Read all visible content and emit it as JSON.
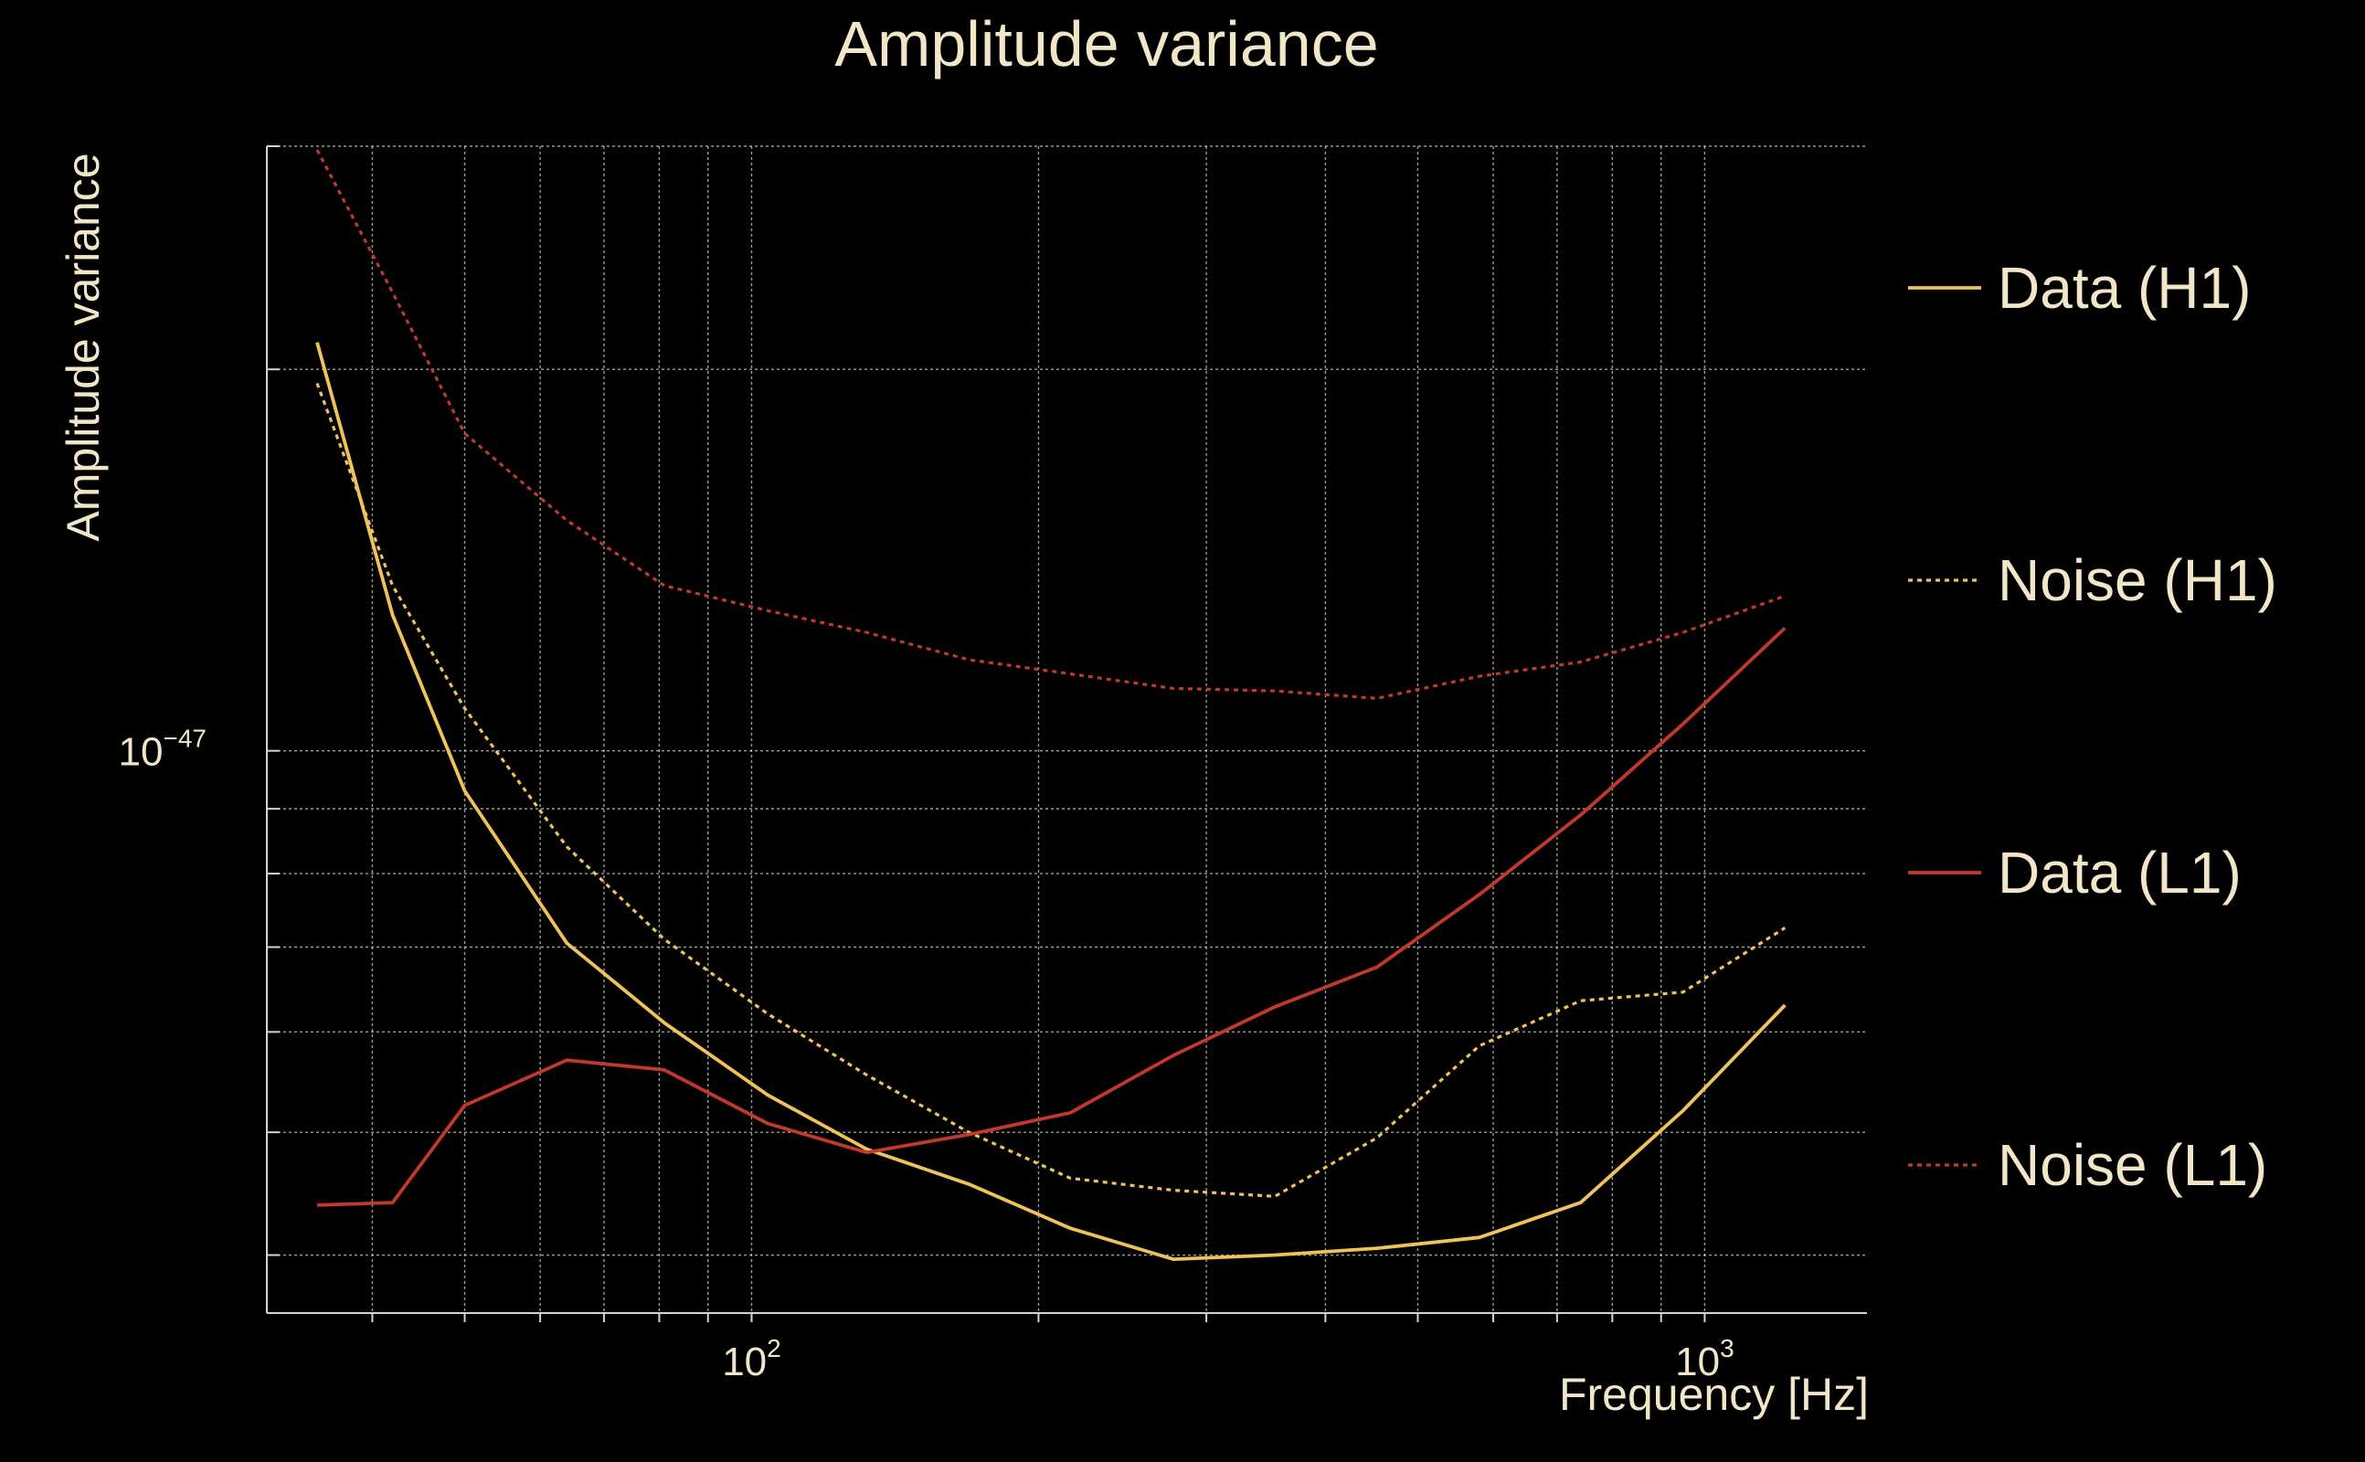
{
  "chart_data": {
    "type": "line",
    "title": "Amplitude variance",
    "xlabel": "Frequency [Hz]",
    "ylabel": "Amplitude variance",
    "xscale": "log",
    "yscale": "log",
    "xlim": [
      31,
      1480
    ],
    "ylim": [
      3.6e-48,
      3e-47
    ],
    "grid": true,
    "legend_position": "right",
    "x_tick_labels": [
      {
        "value": 100,
        "base": "10",
        "exp": "2"
      },
      {
        "value": 1000,
        "base": "10",
        "exp": "3"
      }
    ],
    "y_tick_labels": [
      {
        "value": 1e-47,
        "base": "10",
        "exp": "−47"
      }
    ],
    "x": [
      35,
      42,
      50,
      64,
      81,
      104,
      132,
      169,
      216,
      277,
      354,
      453,
      580,
      741,
      949,
      1214
    ],
    "series": [
      {
        "name": "Data (H1)",
        "color": "#f0c35a",
        "style": "solid",
        "values": [
          2.1e-47,
          1.28e-47,
          9.3e-48,
          7.05e-48,
          6.1e-48,
          5.35e-48,
          4.85e-48,
          4.55e-48,
          4.2e-48,
          3.97e-48,
          4e-48,
          4.05e-48,
          4.13e-48,
          4.4e-48,
          5.2e-48,
          6.3e-48
        ]
      },
      {
        "name": "Noise (H1)",
        "color": "#f0c35a",
        "style": "dotted",
        "values": [
          1.95e-47,
          1.35e-47,
          1.08e-47,
          8.4e-48,
          7.1e-48,
          6.2e-48,
          5.55e-48,
          5e-48,
          4.6e-48,
          4.5e-48,
          4.45e-48,
          4.95e-48,
          5.85e-48,
          6.35e-48,
          6.45e-48,
          7.25e-48
        ]
      },
      {
        "name": "Data (L1)",
        "color": "#c0392b",
        "style": "solid",
        "values": [
          4.38e-48,
          4.4e-48,
          5.25e-48,
          5.7e-48,
          5.6e-48,
          5.08e-48,
          4.82e-48,
          4.98e-48,
          5.18e-48,
          5.75e-48,
          6.28e-48,
          6.75e-48,
          7.7e-48,
          8.9e-48,
          1.05e-47,
          1.25e-47
        ]
      },
      {
        "name": "Noise (L1)",
        "color": "#c0392b",
        "style": "dotted",
        "values": [
          2.98e-47,
          2.3e-47,
          1.78e-47,
          1.52e-47,
          1.35e-47,
          1.29e-47,
          1.24e-47,
          1.18e-47,
          1.15e-47,
          1.12e-47,
          1.115e-47,
          1.1e-47,
          1.145e-47,
          1.175e-47,
          1.24e-47,
          1.325e-47
        ]
      }
    ]
  }
}
